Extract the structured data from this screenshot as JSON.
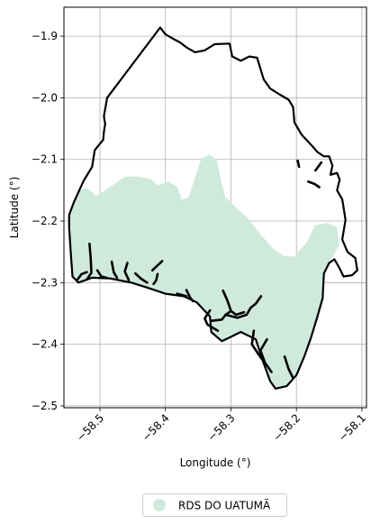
{
  "chart_data": {
    "type": "map",
    "xlabel": "Longitude (°)",
    "ylabel": "Latitude (°)",
    "xlim": [
      -58.555,
      -58.093
    ],
    "ylim": [
      -2.503,
      -1.853
    ],
    "x_ticks": [
      {
        "value": -58.5,
        "label": "−58.5"
      },
      {
        "value": -58.4,
        "label": "−58.4"
      },
      {
        "value": -58.3,
        "label": "−58.3"
      },
      {
        "value": -58.2,
        "label": "−58.2"
      },
      {
        "value": -58.1,
        "label": "−58.1"
      }
    ],
    "y_ticks": [
      {
        "value": -1.9,
        "label": "−1.9"
      },
      {
        "value": -2.0,
        "label": "−2.0"
      },
      {
        "value": -2.1,
        "label": "−2.1"
      },
      {
        "value": -2.2,
        "label": "−2.2"
      },
      {
        "value": -2.3,
        "label": "−2.3"
      },
      {
        "value": -2.4,
        "label": "−2.4"
      },
      {
        "value": -2.5,
        "label": "−2.5"
      }
    ],
    "grid": true,
    "legend": {
      "placement": "bottom-center",
      "entries": [
        {
          "label": "RDS DO UATUMÃ",
          "color": "#cfeadd"
        }
      ]
    },
    "series": [
      {
        "name": "RDS DO UATUMÃ",
        "kind": "filled-region",
        "color": "#cfeadd",
        "polygon": [
          [
            -58.547,
            -2.19
          ],
          [
            -58.54,
            -2.168
          ],
          [
            -58.53,
            -2.15
          ],
          [
            -58.522,
            -2.146
          ],
          [
            -58.512,
            -2.152
          ],
          [
            -58.507,
            -2.16
          ],
          [
            -58.492,
            -2.15
          ],
          [
            -58.478,
            -2.14
          ],
          [
            -58.462,
            -2.128
          ],
          [
            -58.44,
            -2.128
          ],
          [
            -58.422,
            -2.132
          ],
          [
            -58.412,
            -2.142
          ],
          [
            -58.395,
            -2.136
          ],
          [
            -58.382,
            -2.145
          ],
          [
            -58.375,
            -2.165
          ],
          [
            -58.365,
            -2.162
          ],
          [
            -58.358,
            -2.14
          ],
          [
            -58.345,
            -2.098
          ],
          [
            -58.333,
            -2.092
          ],
          [
            -58.322,
            -2.1
          ],
          [
            -58.315,
            -2.135
          ],
          [
            -58.308,
            -2.162
          ],
          [
            -58.29,
            -2.18
          ],
          [
            -58.274,
            -2.196
          ],
          [
            -58.256,
            -2.22
          ],
          [
            -58.238,
            -2.242
          ],
          [
            -58.221,
            -2.256
          ],
          [
            -58.204,
            -2.258
          ],
          [
            -58.184,
            -2.234
          ],
          [
            -58.172,
            -2.207
          ],
          [
            -58.152,
            -2.203
          ],
          [
            -58.138,
            -2.21
          ],
          [
            -58.135,
            -2.24
          ],
          [
            -58.15,
            -2.268
          ],
          [
            -58.158,
            -2.285
          ],
          [
            -58.16,
            -2.325
          ],
          [
            -58.168,
            -2.355
          ],
          [
            -58.178,
            -2.39
          ],
          [
            -58.188,
            -2.42
          ],
          [
            -58.2,
            -2.45
          ],
          [
            -58.215,
            -2.468
          ],
          [
            -58.232,
            -2.472
          ],
          [
            -58.24,
            -2.46
          ],
          [
            -58.252,
            -2.425
          ],
          [
            -58.262,
            -2.392
          ],
          [
            -58.285,
            -2.38
          ],
          [
            -58.3,
            -2.388
          ],
          [
            -58.314,
            -2.395
          ],
          [
            -58.33,
            -2.38
          ],
          [
            -58.332,
            -2.355
          ],
          [
            -58.352,
            -2.332
          ],
          [
            -58.372,
            -2.322
          ],
          [
            -58.4,
            -2.318
          ],
          [
            -58.428,
            -2.308
          ],
          [
            -58.452,
            -2.3
          ],
          [
            -58.485,
            -2.293
          ],
          [
            -58.512,
            -2.292
          ],
          [
            -58.533,
            -2.3
          ],
          [
            -58.542,
            -2.29
          ],
          [
            -58.545,
            -2.245
          ],
          [
            -58.547,
            -2.21
          ]
        ]
      },
      {
        "name": "",
        "kind": "boundary",
        "color": "#000000",
        "polygon": [
          [
            -58.547,
            -2.19
          ],
          [
            -58.54,
            -2.17
          ],
          [
            -58.525,
            -2.135
          ],
          [
            -58.512,
            -2.112
          ],
          [
            -58.508,
            -2.085
          ],
          [
            -58.495,
            -2.068
          ],
          [
            -58.494,
            -2.055
          ],
          [
            -58.492,
            -2.043
          ],
          [
            -58.494,
            -2.03
          ],
          [
            -58.489,
            -2.0
          ],
          [
            -58.408,
            -1.886
          ],
          [
            -58.4,
            -1.897
          ],
          [
            -58.387,
            -1.905
          ],
          [
            -58.378,
            -1.91
          ],
          [
            -58.368,
            -1.918
          ],
          [
            -58.355,
            -1.926
          ],
          [
            -58.34,
            -1.923
          ],
          [
            -58.325,
            -1.913
          ],
          [
            -58.302,
            -1.912
          ],
          [
            -58.298,
            -1.933
          ],
          [
            -58.285,
            -1.94
          ],
          [
            -58.272,
            -1.933
          ],
          [
            -58.26,
            -1.935
          ],
          [
            -58.25,
            -1.97
          ],
          [
            -58.24,
            -1.985
          ],
          [
            -58.225,
            -1.995
          ],
          [
            -58.212,
            -2.003
          ],
          [
            -58.205,
            -2.015
          ],
          [
            -58.203,
            -2.04
          ],
          [
            -58.192,
            -2.06
          ],
          [
            -58.176,
            -2.078
          ],
          [
            -58.168,
            -2.088
          ],
          [
            -58.158,
            -2.095
          ],
          [
            -58.15,
            -2.095
          ],
          [
            -58.145,
            -2.11
          ],
          [
            -58.148,
            -2.125
          ],
          [
            -58.138,
            -2.122
          ],
          [
            -58.134,
            -2.133
          ],
          [
            -58.138,
            -2.15
          ],
          [
            -58.13,
            -2.165
          ],
          [
            -58.125,
            -2.198
          ],
          [
            -58.13,
            -2.23
          ],
          [
            -58.122,
            -2.25
          ],
          [
            -58.11,
            -2.26
          ],
          [
            -58.107,
            -2.28
          ],
          [
            -58.115,
            -2.288
          ],
          [
            -58.128,
            -2.29
          ],
          [
            -58.135,
            -2.275
          ],
          [
            -58.142,
            -2.262
          ],
          [
            -58.15,
            -2.268
          ],
          [
            -58.158,
            -2.285
          ],
          [
            -58.16,
            -2.325
          ],
          [
            -58.168,
            -2.355
          ],
          [
            -58.178,
            -2.39
          ],
          [
            -58.188,
            -2.42
          ],
          [
            -58.2,
            -2.45
          ],
          [
            -58.215,
            -2.468
          ],
          [
            -58.232,
            -2.472
          ],
          [
            -58.24,
            -2.46
          ],
          [
            -58.252,
            -2.425
          ],
          [
            -58.262,
            -2.392
          ],
          [
            -58.285,
            -2.38
          ],
          [
            -58.3,
            -2.388
          ],
          [
            -58.314,
            -2.395
          ],
          [
            -58.33,
            -2.38
          ],
          [
            -58.332,
            -2.355
          ],
          [
            -58.352,
            -2.332
          ],
          [
            -58.372,
            -2.322
          ],
          [
            -58.4,
            -2.318
          ],
          [
            -58.428,
            -2.308
          ],
          [
            -58.452,
            -2.3
          ],
          [
            -58.485,
            -2.293
          ],
          [
            -58.512,
            -2.292
          ],
          [
            -58.533,
            -2.3
          ],
          [
            -58.542,
            -2.29
          ],
          [
            -58.545,
            -2.245
          ],
          [
            -58.547,
            -2.21
          ]
        ],
        "tributaries": [
          [
            [
              -58.516,
              -2.237
            ],
            [
              -58.514,
              -2.262
            ],
            [
              -58.513,
              -2.284
            ],
            [
              -58.52,
              -2.295
            ]
          ],
          [
            [
              -58.52,
              -2.283
            ],
            [
              -58.528,
              -2.286
            ],
            [
              -58.535,
              -2.296
            ]
          ],
          [
            [
              -58.504,
              -2.28
            ],
            [
              -58.498,
              -2.29
            ],
            [
              -58.49,
              -2.292
            ]
          ],
          [
            [
              -58.482,
              -2.266
            ],
            [
              -58.479,
              -2.283
            ],
            [
              -58.474,
              -2.292
            ]
          ],
          [
            [
              -58.458,
              -2.268
            ],
            [
              -58.462,
              -2.282
            ],
            [
              -58.456,
              -2.296
            ]
          ],
          [
            [
              -58.446,
              -2.285
            ],
            [
              -58.438,
              -2.293
            ],
            [
              -58.428,
              -2.3
            ]
          ],
          [
            [
              -58.412,
              -2.286
            ],
            [
              -58.414,
              -2.296
            ],
            [
              -58.418,
              -2.302
            ]
          ],
          [
            [
              -58.405,
              -2.265
            ],
            [
              -58.412,
              -2.272
            ],
            [
              -58.42,
              -2.28
            ]
          ],
          [
            [
              -58.368,
              -2.312
            ],
            [
              -58.362,
              -2.325
            ],
            [
              -58.358,
              -2.33
            ]
          ],
          [
            [
              -58.382,
              -2.318
            ],
            [
              -58.368,
              -2.322
            ]
          ],
          [
            [
              -58.332,
              -2.345
            ],
            [
              -58.34,
              -2.358
            ],
            [
              -58.336,
              -2.368
            ],
            [
              -58.32,
              -2.378
            ]
          ],
          [
            [
              -58.312,
              -2.313
            ],
            [
              -58.305,
              -2.33
            ],
            [
              -58.3,
              -2.346
            ],
            [
              -58.292,
              -2.352
            ],
            [
              -58.28,
              -2.348
            ]
          ],
          [
            [
              -58.3,
              -2.346
            ],
            [
              -58.308,
              -2.352
            ]
          ],
          [
            [
              -58.254,
              -2.322
            ],
            [
              -58.262,
              -2.334
            ],
            [
              -58.27,
              -2.341
            ],
            [
              -58.276,
              -2.352
            ],
            [
              -58.29,
              -2.357
            ],
            [
              -58.308,
              -2.352
            ],
            [
              -58.314,
              -2.36
            ],
            [
              -58.33,
              -2.362
            ]
          ],
          [
            [
              -58.265,
              -2.378
            ],
            [
              -58.268,
              -2.4
            ],
            [
              -58.258,
              -2.416
            ],
            [
              -58.252,
              -2.425
            ]
          ],
          [
            [
              -58.245,
              -2.392
            ],
            [
              -58.255,
              -2.41
            ],
            [
              -58.248,
              -2.43
            ],
            [
              -58.238,
              -2.445
            ]
          ],
          [
            [
              -58.218,
              -2.42
            ],
            [
              -58.212,
              -2.44
            ],
            [
              -58.205,
              -2.455
            ]
          ],
          [
            [
              -58.182,
              -2.136
            ],
            [
              -58.172,
              -2.14
            ],
            [
              -58.165,
              -2.145
            ]
          ],
          [
            [
              -58.198,
              -2.102
            ],
            [
              -58.196,
              -2.112
            ]
          ],
          [
            [
              -58.162,
              -2.105
            ],
            [
              -58.171,
              -2.118
            ]
          ]
        ]
      }
    ]
  }
}
